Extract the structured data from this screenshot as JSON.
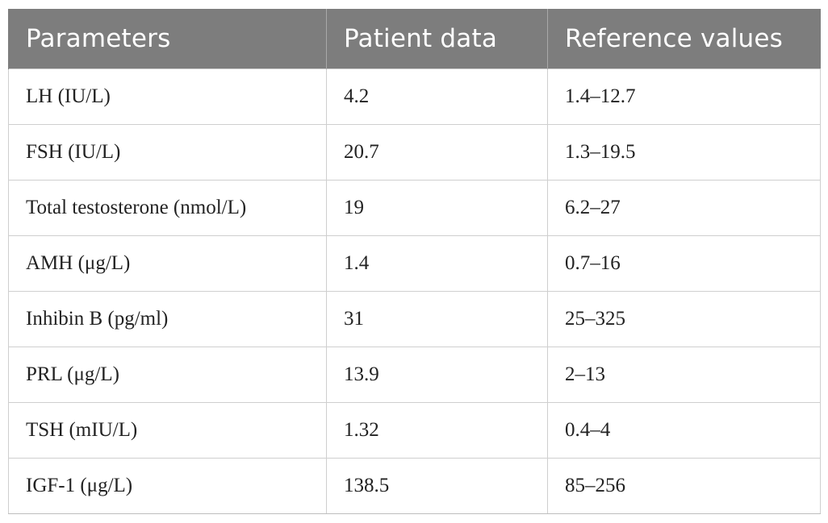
{
  "table": {
    "headers": [
      "Parameters",
      "Patient data",
      "Reference values"
    ],
    "rows": [
      [
        "LH (IU/L)",
        "4.2",
        "1.4–12.7"
      ],
      [
        "FSH (IU/L)",
        "20.7",
        "1.3–19.5"
      ],
      [
        "Total testosterone (nmol/L)",
        "19",
        "6.2–27"
      ],
      [
        "AMH (μg/L)",
        "1.4",
        "0.7–16"
      ],
      [
        "Inhibin B (pg/ml)",
        "31",
        "25–325"
      ],
      [
        "PRL (μg/L)",
        "13.9",
        "2–13"
      ],
      [
        "TSH (mIU/L)",
        "1.32",
        "0.4–4"
      ],
      [
        "IGF-1 (μg/L)",
        "138.5",
        "85–256"
      ]
    ]
  }
}
